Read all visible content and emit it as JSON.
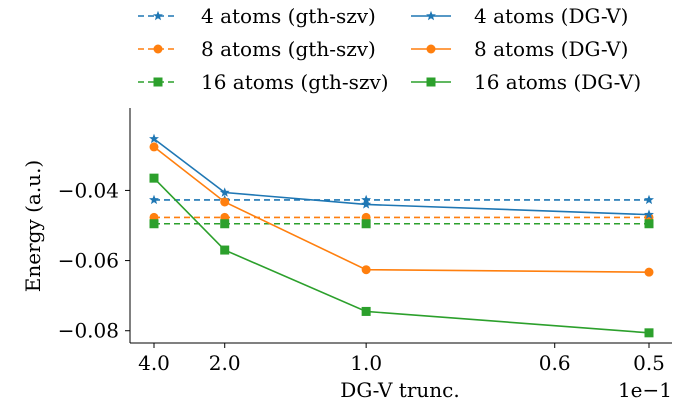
{
  "chart_data": {
    "type": "line",
    "xlabel": "DG-V trunc.",
    "ylabel": "Energy (a.u.)",
    "x_scale": "reciprocal",
    "x_offset_label": "1e−1",
    "x_ticks": [
      {
        "value": 4.0,
        "label": "4.0"
      },
      {
        "value": 2.0,
        "label": "2.0"
      },
      {
        "value": 1.0,
        "label": "1.0"
      },
      {
        "value": 0.6,
        "label": "0.6"
      },
      {
        "value": 0.5,
        "label": "0.5"
      }
    ],
    "y_ticks": [
      {
        "value": -0.04,
        "label": "−0.04"
      },
      {
        "value": -0.06,
        "label": "−0.06"
      },
      {
        "value": -0.08,
        "label": "−0.08"
      }
    ],
    "xlim": [
      4.0,
      0.5
    ],
    "ylim": [
      -0.0835,
      -0.0165
    ],
    "x": [
      4.0,
      2.0,
      1.0,
      0.5
    ],
    "series": [
      {
        "name": "4 atoms (gth-szv)",
        "color": "#1f77b4",
        "marker": "star",
        "dashed": true,
        "values": [
          -0.0427,
          -0.0427,
          -0.0427,
          -0.0427
        ]
      },
      {
        "name": "8 atoms (gth-szv)",
        "color": "#ff7f0e",
        "marker": "circle",
        "dashed": true,
        "values": [
          -0.0477,
          -0.0477,
          -0.0477,
          -0.0477
        ]
      },
      {
        "name": "16 atoms (gth-szv)",
        "color": "#2ca02c",
        "marker": "square",
        "dashed": true,
        "values": [
          -0.0495,
          -0.0495,
          -0.0495,
          -0.0495
        ]
      },
      {
        "name": "4 atoms (DG-V)",
        "color": "#1f77b4",
        "marker": "star",
        "dashed": false,
        "values": [
          -0.0253,
          -0.0406,
          -0.044,
          -0.0469
        ]
      },
      {
        "name": "8 atoms (DG-V)",
        "color": "#ff7f0e",
        "marker": "circle",
        "dashed": false,
        "values": [
          -0.0276,
          -0.0433,
          -0.0626,
          -0.0633
        ]
      },
      {
        "name": "16 atoms (DG-V)",
        "color": "#2ca02c",
        "marker": "square",
        "dashed": false,
        "values": [
          -0.0365,
          -0.057,
          -0.0745,
          -0.0806
        ]
      }
    ],
    "legend": {
      "position": "top",
      "columns": 2,
      "order": [
        0,
        3,
        1,
        4,
        2,
        5
      ]
    },
    "grid": false
  }
}
